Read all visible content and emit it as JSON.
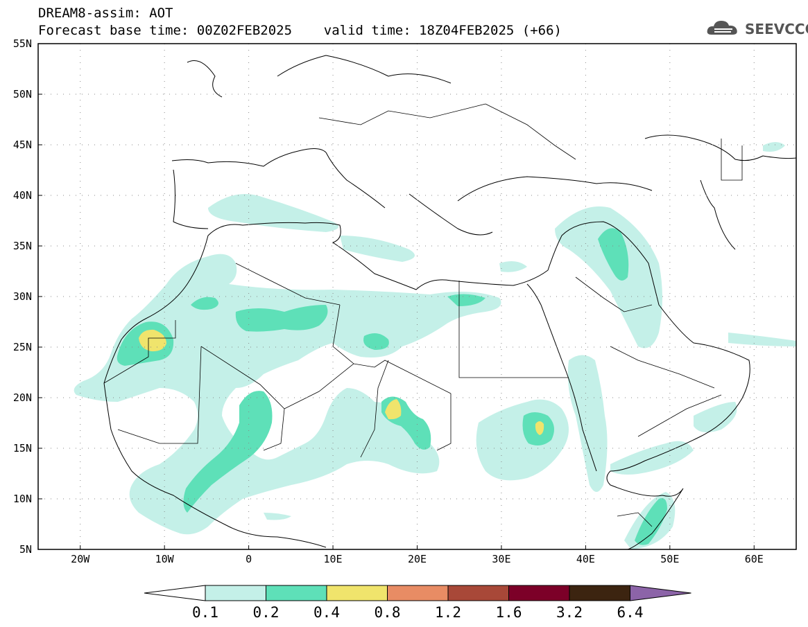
{
  "header": {
    "title_line1": "DREAM8-assim: AOT",
    "title_line2": "Forecast base time: 00Z02FEB2025    valid time: 18Z04FEB2025 (+66)",
    "logo_text": "SEEVCCC",
    "logo_icon": "cloud-logo-icon"
  },
  "map": {
    "variable": "AOT",
    "lon_range": [
      -25,
      65
    ],
    "lat_range": [
      5,
      55
    ],
    "lat_ticks": [
      {
        "value": 55,
        "label": "55N"
      },
      {
        "value": 50,
        "label": "50N"
      },
      {
        "value": 45,
        "label": "45N"
      },
      {
        "value": 40,
        "label": "40N"
      },
      {
        "value": 35,
        "label": "35N"
      },
      {
        "value": 30,
        "label": "30N"
      },
      {
        "value": 25,
        "label": "25N"
      },
      {
        "value": 20,
        "label": "20N"
      },
      {
        "value": 15,
        "label": "15N"
      },
      {
        "value": 10,
        "label": "10N"
      },
      {
        "value": 5,
        "label": "5N"
      }
    ],
    "lon_ticks": [
      {
        "value": -20,
        "label": "20W"
      },
      {
        "value": -10,
        "label": "10W"
      },
      {
        "value": 0,
        "label": "0"
      },
      {
        "value": 10,
        "label": "10E"
      },
      {
        "value": 20,
        "label": "20E"
      },
      {
        "value": 30,
        "label": "30E"
      },
      {
        "value": 40,
        "label": "40E"
      },
      {
        "value": 50,
        "label": "50E"
      },
      {
        "value": 60,
        "label": "60E"
      }
    ],
    "grid": "dotted"
  },
  "colorbar": {
    "labels": [
      "0.1",
      "0.2",
      "0.4",
      "0.8",
      "1.2",
      "1.6",
      "3.2",
      "6.4"
    ],
    "colors": [
      "#ffffff",
      "#c4f0e8",
      "#5ee0b8",
      "#f0e46c",
      "#e88c64",
      "#a84838",
      "#7c0028",
      "#3c2410",
      "#8c64a8"
    ]
  }
}
